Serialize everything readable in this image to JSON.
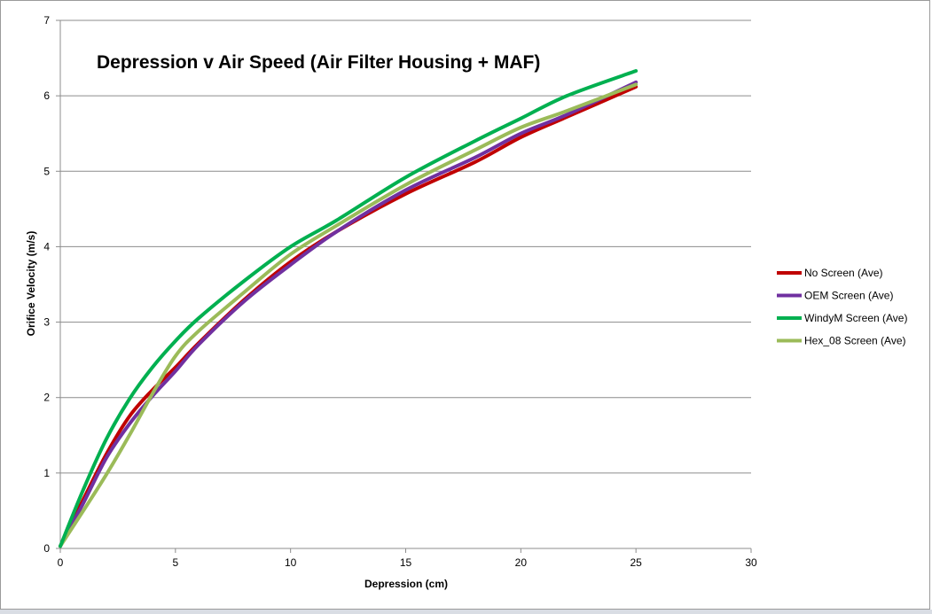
{
  "chart_data": {
    "type": "line",
    "title": "Depression v Air Speed (Air Filter Housing + MAF)",
    "xlabel": "Depression (cm)",
    "ylabel": "Orifice Velocity (m/s)",
    "xlim": [
      0,
      30
    ],
    "ylim": [
      0,
      7
    ],
    "xticks": [
      0,
      5,
      10,
      15,
      20,
      25,
      30
    ],
    "yticks": [
      0,
      1,
      2,
      3,
      4,
      5,
      6,
      7
    ],
    "grid": "horizontal",
    "legend_position": "right",
    "series": [
      {
        "name": "No Screen (Ave)",
        "color": "#c00000",
        "points": [
          [
            0,
            0.03
          ],
          [
            1,
            0.65
          ],
          [
            2,
            1.25
          ],
          [
            3,
            1.75
          ],
          [
            4,
            2.1
          ],
          [
            5,
            2.4
          ],
          [
            6,
            2.72
          ],
          [
            8,
            3.3
          ],
          [
            10,
            3.8
          ],
          [
            12,
            4.2
          ],
          [
            15,
            4.7
          ],
          [
            18,
            5.12
          ],
          [
            20,
            5.45
          ],
          [
            22,
            5.72
          ],
          [
            25,
            6.12
          ]
        ]
      },
      {
        "name": "OEM Screen (Ave)",
        "color": "#7030a0",
        "points": [
          [
            0,
            0.03
          ],
          [
            1,
            0.6
          ],
          [
            2,
            1.2
          ],
          [
            3,
            1.65
          ],
          [
            4,
            2.02
          ],
          [
            5,
            2.35
          ],
          [
            6,
            2.7
          ],
          [
            8,
            3.28
          ],
          [
            10,
            3.76
          ],
          [
            12,
            4.2
          ],
          [
            15,
            4.75
          ],
          [
            18,
            5.18
          ],
          [
            20,
            5.5
          ],
          [
            22,
            5.75
          ],
          [
            25,
            6.18
          ]
        ]
      },
      {
        "name": "WindyM Screen (Ave)",
        "color": "#00b050",
        "points": [
          [
            0,
            0.03
          ],
          [
            1,
            0.78
          ],
          [
            2,
            1.45
          ],
          [
            3,
            1.98
          ],
          [
            4,
            2.4
          ],
          [
            5,
            2.75
          ],
          [
            6,
            3.05
          ],
          [
            8,
            3.55
          ],
          [
            10,
            4.0
          ],
          [
            12,
            4.35
          ],
          [
            15,
            4.92
          ],
          [
            18,
            5.4
          ],
          [
            20,
            5.7
          ],
          [
            22,
            6.0
          ],
          [
            25,
            6.33
          ]
        ]
      },
      {
        "name": "Hex_08 Screen (Ave)",
        "color": "#9bbb59",
        "points": [
          [
            0,
            0.03
          ],
          [
            1,
            0.5
          ],
          [
            2,
            0.98
          ],
          [
            3,
            1.5
          ],
          [
            4,
            2.05
          ],
          [
            5,
            2.55
          ],
          [
            6,
            2.88
          ],
          [
            8,
            3.4
          ],
          [
            10,
            3.9
          ],
          [
            12,
            4.28
          ],
          [
            15,
            4.82
          ],
          [
            18,
            5.28
          ],
          [
            20,
            5.58
          ],
          [
            22,
            5.8
          ],
          [
            25,
            6.15
          ]
        ]
      }
    ]
  }
}
